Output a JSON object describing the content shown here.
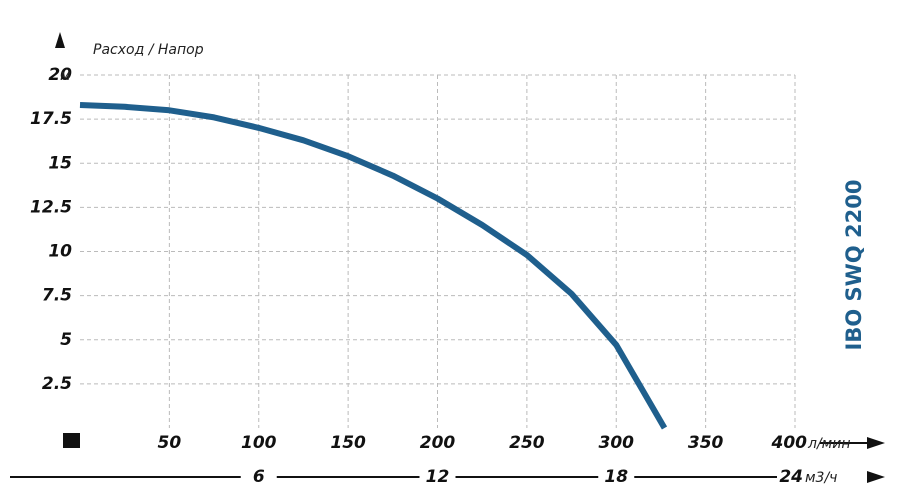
{
  "chart_data": {
    "type": "line",
    "title": "IBO SWQ 2200",
    "axis_label": "Расход / Напор",
    "y_unit": "м",
    "x_unit": "л/мин",
    "x2_unit": "м3/ч",
    "color": "#1f5f8d",
    "x": [
      0,
      25,
      50,
      75,
      100,
      125,
      150,
      175,
      200,
      225,
      250,
      275,
      300,
      327
    ],
    "values": [
      18.3,
      18.2,
      18.0,
      17.6,
      17.0,
      16.3,
      15.4,
      14.3,
      13.0,
      11.5,
      9.8,
      7.6,
      4.7,
      0
    ],
    "xlim": [
      0,
      400
    ],
    "xticks": [
      50,
      100,
      150,
      200,
      250,
      300,
      350,
      400
    ],
    "x2lim": [
      0,
      24
    ],
    "x2ticks": [
      6,
      12,
      18,
      24
    ],
    "ylim": [
      0,
      20
    ],
    "yticks": [
      2.5,
      5,
      7.5,
      10,
      12.5,
      15,
      17.5,
      20
    ],
    "grid": true
  }
}
